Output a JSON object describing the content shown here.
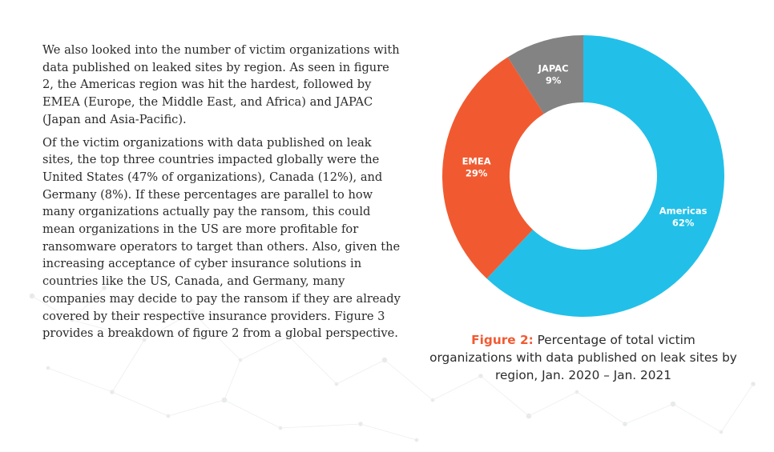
{
  "article": {
    "paragraphs": [
      "We also looked into the number of victim organizations with data published on leaked sites by region. As seen in figure 2, the Americas region was hit the hardest, followed by EMEA (Europe, the Middle East, and Africa) and JAPAC (Japan and Asia-Pacific).",
      "Of the victim organizations with data published on leak sites, the top three countries impacted globally were the United States (47% of organizations), Canada (12%), and Germany (8%). If these percentages are parallel to how many organizations actually pay the ransom, this could mean organizations in the US are more profitable for ransomware operators to target than others. Also, given the increasing acceptance of cyber insurance solutions in countries like the US, Canada, and Germany, many companies may decide to pay the ransom if they are already covered by their respective insurance providers. Figure 3 provides a breakdown of figure 2 from a global perspective."
    ]
  },
  "caption": {
    "label": "Figure 2:",
    "text": " Percentage of total victim organizations with data published on leak sites by region, Jan. 2020 – Jan. 2021"
  },
  "chart_data": {
    "type": "pie",
    "donut": true,
    "title": "",
    "categories": [
      "Americas",
      "EMEA",
      "JAPAC"
    ],
    "values": [
      62,
      29,
      9
    ],
    "value_labels": [
      "62%",
      "29%",
      "9%"
    ],
    "colors": [
      "#22c0e8",
      "#f15a31",
      "#838383"
    ],
    "start": "12 o'clock",
    "direction": "clockwise",
    "legend": "none"
  }
}
